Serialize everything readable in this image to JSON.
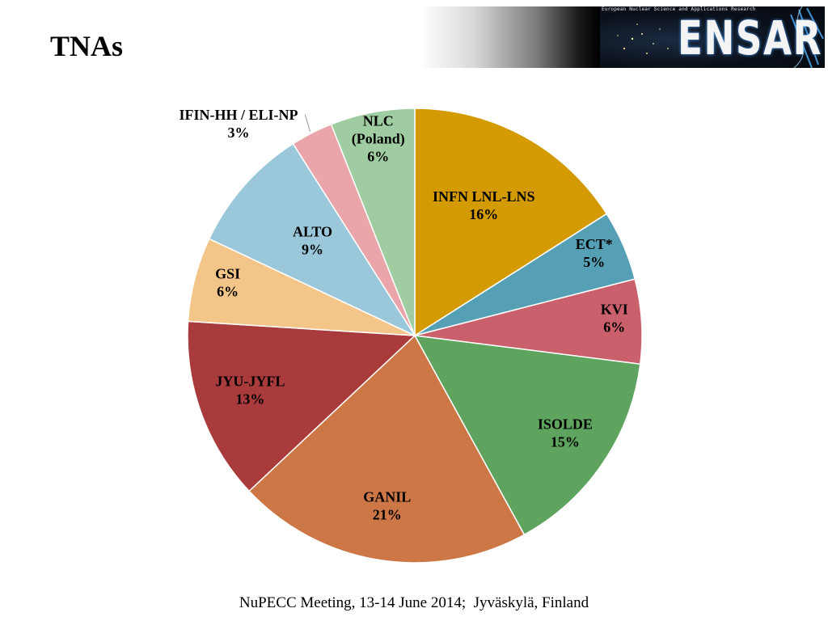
{
  "slide": {
    "title": "TNAs",
    "footer": "NuPECC Meeting, 13-14 June 2014;  Jyväskylä, Finland"
  },
  "banner": {
    "tagline": "European Nuclear Science and Applications Research",
    "brand": "ENSAR"
  },
  "chart_data": {
    "type": "pie",
    "title": "",
    "start": "12 o'clock",
    "direction": "clockwise",
    "slices": [
      {
        "label": "INFN LNL-LNS",
        "value": 16,
        "display": "16%",
        "color": "#D39A02"
      },
      {
        "label": "ECT*",
        "value": 5,
        "display": "5%",
        "color": "#55A0B5"
      },
      {
        "label": "KVI",
        "value": 6,
        "display": "6%",
        "color": "#C9606B"
      },
      {
        "label": "ISOLDE",
        "value": 15,
        "display": "15%",
        "color": "#5EA45E"
      },
      {
        "label": "GANIL",
        "value": 21,
        "display": "21%",
        "color": "#CC7745"
      },
      {
        "label": "JYU-JYFL",
        "value": 13,
        "display": "13%",
        "color": "#AA3B3D"
      },
      {
        "label": "GSI",
        "value": 6,
        "display": "6%",
        "color": "#F3C589"
      },
      {
        "label": "ALTO",
        "value": 9,
        "display": "9%",
        "color": "#9AC8DA"
      },
      {
        "label": "IFIN-HH / ELI-NP",
        "value": 3,
        "display": "3%",
        "color": "#E9A5AA"
      },
      {
        "label": "NLC\n(Poland)",
        "value": 6,
        "display": "6%",
        "color": "#9FCCA0"
      }
    ]
  }
}
